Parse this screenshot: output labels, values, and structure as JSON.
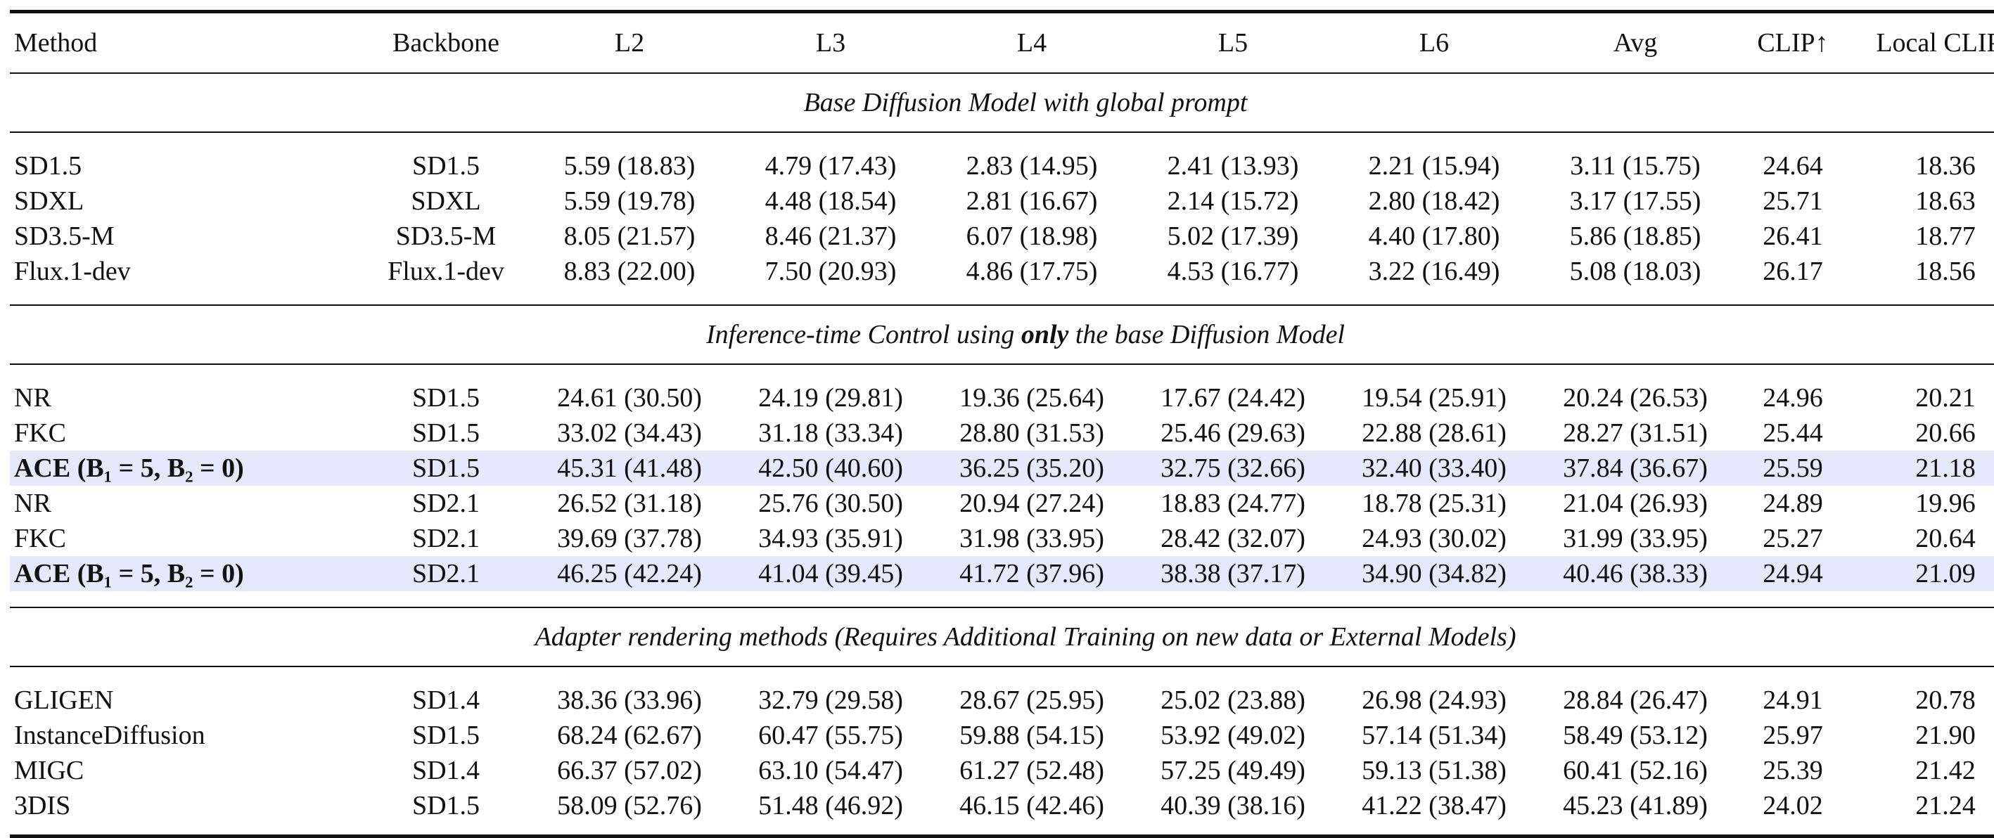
{
  "columns": [
    "Method",
    "Backbone",
    "L2",
    "L3",
    "L4",
    "L5",
    "L6",
    "Avg",
    "CLIP↑",
    "Local CLIP↑"
  ],
  "sections": [
    {
      "title": "Base Diffusion Model with global prompt",
      "rows": [
        {
          "method": "SD1.5",
          "backbone": "SD1.5",
          "values": [
            "5.59 (18.83)",
            "4.79 (17.43)",
            "2.83 (14.95)",
            "2.41 (13.93)",
            "2.21 (15.94)",
            "3.11 (15.75)",
            "24.64",
            "18.36"
          ]
        },
        {
          "method": "SDXL",
          "backbone": "SDXL",
          "values": [
            "5.59 (19.78)",
            "4.48 (18.54)",
            "2.81 (16.67)",
            "2.14 (15.72)",
            "2.80 (18.42)",
            "3.17 (17.55)",
            "25.71",
            "18.63"
          ]
        },
        {
          "method": "SD3.5-M",
          "backbone": "SD3.5-M",
          "values": [
            "8.05 (21.57)",
            "8.46 (21.37)",
            "6.07 (18.98)",
            "5.02 (17.39)",
            "4.40 (17.80)",
            "5.86 (18.85)",
            "26.41",
            "18.77"
          ]
        },
        {
          "method": "Flux.1-dev",
          "backbone": "Flux.1-dev",
          "values": [
            "8.83 (22.00)",
            "7.50 (20.93)",
            "4.86 (17.75)",
            "4.53 (16.77)",
            "3.22 (16.49)",
            "5.08 (18.03)",
            "26.17",
            "18.56"
          ]
        }
      ]
    },
    {
      "title_pre": "Inference-time Control using ",
      "title_bold": "only",
      "title_post": " the base Diffusion Model",
      "rows": [
        {
          "method": "NR",
          "backbone": "SD1.5",
          "values": [
            "24.61 (30.50)",
            "24.19 (29.81)",
            "19.36 (25.64)",
            "17.67 (24.42)",
            "19.54 (25.91)",
            "20.24 (26.53)",
            "24.96",
            "20.21"
          ]
        },
        {
          "method": "FKC",
          "backbone": "SD1.5",
          "values": [
            "33.02 (34.43)",
            "31.18 (33.34)",
            "28.80 (31.53)",
            "25.46 (29.63)",
            "22.88 (28.61)",
            "28.27 (31.51)",
            "25.44",
            "20.66"
          ]
        },
        {
          "method": "ACE",
          "params": "(B₁ = 5, B₂ = 0)",
          "backbone": "SD1.5",
          "values": [
            "45.31 (41.48)",
            "42.50 (40.60)",
            "36.25 (35.20)",
            "32.75 (32.66)",
            "32.40 (33.40)",
            "37.84 (36.67)",
            "25.59",
            "21.18"
          ]
        },
        {
          "method": "NR",
          "backbone": "SD2.1",
          "values": [
            "26.52 (31.18)",
            "25.76 (30.50)",
            "20.94 (27.24)",
            "18.83 (24.77)",
            "18.78 (25.31)",
            "21.04 (26.93)",
            "24.89",
            "19.96"
          ]
        },
        {
          "method": "FKC",
          "backbone": "SD2.1",
          "values": [
            "39.69 (37.78)",
            "34.93 (35.91)",
            "31.98 (33.95)",
            "28.42 (32.07)",
            "24.93 (30.02)",
            "31.99 (33.95)",
            "25.27",
            "20.64"
          ]
        },
        {
          "method": "ACE",
          "params": "(B₁ = 5, B₂ = 0)",
          "backbone": "SD2.1",
          "values": [
            "46.25 (42.24)",
            "41.04 (39.45)",
            "41.72 (37.96)",
            "38.38 (37.17)",
            "34.90 (34.82)",
            "40.46 (38.33)",
            "24.94",
            "21.09"
          ]
        }
      ]
    },
    {
      "title": "Adapter rendering methods (Requires Additional Training on new data or External Models)",
      "rows": [
        {
          "method": "GLIGEN",
          "backbone": "SD1.4",
          "values": [
            "38.36 (33.96)",
            "32.79 (29.58)",
            "28.67 (25.95)",
            "25.02 (23.88)",
            "26.98 (24.93)",
            "28.84 (26.47)",
            "24.91",
            "20.78"
          ]
        },
        {
          "method": "InstanceDiffusion",
          "backbone": "SD1.5",
          "values": [
            "68.24 (62.67)",
            "60.47 (55.75)",
            "59.88 (54.15)",
            "53.92 (49.02)",
            "57.14 (51.34)",
            "58.49 (53.12)",
            "25.97",
            "21.90"
          ]
        },
        {
          "method": "MIGC",
          "backbone": "SD1.4",
          "values": [
            "66.37 (57.02)",
            "63.10 (54.47)",
            "61.27 (52.48)",
            "57.25 (49.49)",
            "59.13 (51.38)",
            "60.41 (52.16)",
            "25.39",
            "21.42"
          ]
        },
        {
          "method": "3DIS",
          "backbone": "SD1.5",
          "values": [
            "58.09 (52.76)",
            "51.48 (46.92)",
            "46.15 (42.46)",
            "40.39 (38.16)",
            "41.22 (38.47)",
            "45.23 (41.89)",
            "24.02",
            "21.24"
          ]
        }
      ]
    }
  ]
}
